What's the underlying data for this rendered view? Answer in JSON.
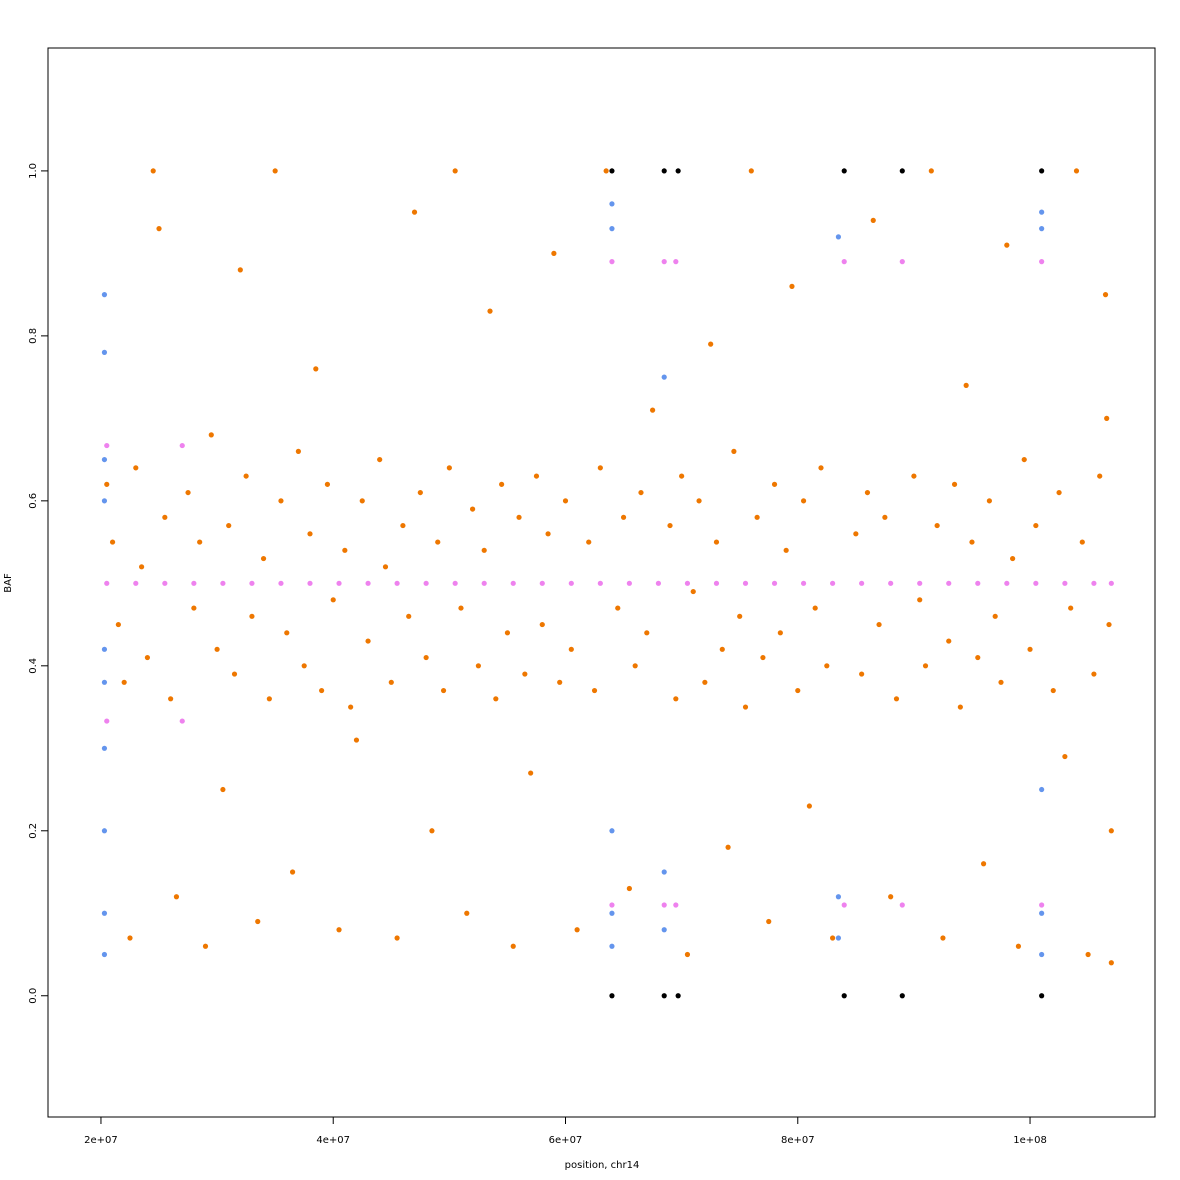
{
  "chart_data": {
    "type": "scatter",
    "x_label": "position, chr14",
    "y_label": "BAF",
    "xlim": [
      15440000,
      110760000
    ],
    "ylim": [
      -0.147,
      1.149
    ],
    "xticks": [
      {
        "value": 20000000,
        "label": "2e+07"
      },
      {
        "value": 40000000,
        "label": "4e+07"
      },
      {
        "value": 60000000,
        "label": "6e+07"
      },
      {
        "value": 80000000,
        "label": "8e+07"
      },
      {
        "value": 100000000,
        "label": "1e+08"
      }
    ],
    "yticks": [
      {
        "value": 0,
        "label": "0.0"
      },
      0.2,
      0.4,
      0.6,
      0.8,
      {
        "value": 1,
        "label": "1.0"
      }
    ],
    "series": [
      {
        "color": "#ee7700",
        "x": [
          20500000.0,
          21000000.0,
          21500000.0,
          22000000.0,
          22500000.0,
          23000000.0,
          23500000.0,
          24000000.0,
          24500000.0,
          25000000.0,
          25500000.0,
          26000000.0,
          26500000.0,
          27500000.0,
          28000000.0,
          28500000.0,
          29000000.0,
          29500000.0,
          30000000.0,
          30500000.0,
          31000000.0,
          31500000.0,
          32000000.0,
          32500000.0,
          33000000.0,
          33500000.0,
          34000000.0,
          34500000.0,
          35000000.0,
          35500000.0,
          36000000.0,
          36500000.0,
          37000000.0,
          37500000.0,
          38000000.0,
          38500000.0,
          39000000.0,
          39500000.0,
          40000000.0,
          40500000.0,
          41000000.0,
          41500000.0,
          42000000.0,
          42500000.0,
          43000000.0,
          44000000.0,
          44500000.0,
          45000000.0,
          45500000.0,
          46000000.0,
          46500000.0,
          47000000.0,
          47500000.0,
          48000000.0,
          48500000.0,
          49000000.0,
          49500000.0,
          50000000.0,
          50500000.0,
          51000000.0,
          51500000.0,
          52000000.0,
          52500000.0,
          53000000.0,
          53500000.0,
          54000000.0,
          54500000.0,
          55000000.0,
          55500000.0,
          56000000.0,
          56500000.0,
          57000000.0,
          57500000.0,
          58000000.0,
          58500000.0,
          59000000.0,
          59500000.0,
          60000000.0,
          60500000.0,
          61000000.0,
          62000000.0,
          62500000.0,
          63000000.0,
          63500000.0,
          64500000.0,
          65000000.0,
          65500000.0,
          66000000.0,
          66500000.0,
          67000000.0,
          67500000.0,
          69000000.0,
          69500000.0,
          70000000.0,
          70500000.0,
          71000000.0,
          71500000.0,
          72000000.0,
          72500000.0,
          73000000.0,
          73500000.0,
          74000000.0,
          74500000.0,
          75000000.0,
          75500000.0,
          76000000.0,
          76500000.0,
          77000000.0,
          77500000.0,
          78000000.0,
          78500000.0,
          79000000.0,
          79500000.0,
          80000000.0,
          80500000.0,
          81000000.0,
          81500000.0,
          82000000.0,
          82500000.0,
          83000000.0,
          85000000.0,
          85500000.0,
          86000000.0,
          86500000.0,
          87000000.0,
          87500000.0,
          88000000.0,
          88500000.0,
          90000000.0,
          90500000.0,
          91000000.0,
          91500000.0,
          92000000.0,
          92500000.0,
          93000000.0,
          93500000.0,
          94000000.0,
          94500000.0,
          95000000.0,
          95500000.0,
          96000000.0,
          96500000.0,
          97000000.0,
          97500000.0,
          98000000.0,
          98500000.0,
          99000000.0,
          99500000.0,
          100000000.0,
          100500000.0,
          102000000.0,
          102500000.0,
          103000000.0,
          103500000.0,
          104000000.0,
          104500000.0,
          105000000.0,
          105500000.0,
          106000000.0,
          106500000.0,
          107000000.0,
          107000000.0,
          106800000.0,
          106600000.0
        ],
        "values": [
          0.62,
          0.55,
          0.45,
          0.38,
          0.07,
          0.64,
          0.52,
          0.41,
          1,
          0.93,
          0.58,
          0.36,
          0.12,
          0.61,
          0.47,
          0.55,
          0.06,
          0.68,
          0.42,
          0.25,
          0.57,
          0.39,
          0.88,
          0.63,
          0.46,
          0.09,
          0.53,
          0.36,
          1,
          0.6,
          0.44,
          0.15,
          0.66,
          0.4,
          0.56,
          0.76,
          0.37,
          0.62,
          0.48,
          0.08,
          0.54,
          0.35,
          0.31,
          0.6,
          0.43,
          0.65,
          0.52,
          0.38,
          0.07,
          0.57,
          0.46,
          0.95,
          0.61,
          0.41,
          0.2,
          0.55,
          0.37,
          0.64,
          1,
          0.47,
          0.1,
          0.59,
          0.4,
          0.54,
          0.83,
          0.36,
          0.62,
          0.44,
          0.06,
          0.58,
          0.39,
          0.27,
          0.63,
          0.45,
          0.56,
          0.9,
          0.38,
          0.6,
          0.42,
          0.08,
          0.55,
          0.37,
          0.64,
          1,
          0.47,
          0.58,
          0.13,
          0.4,
          0.61,
          0.44,
          0.71,
          0.57,
          0.36,
          0.63,
          0.05,
          0.49,
          0.6,
          0.38,
          0.79,
          0.55,
          0.42,
          0.18,
          0.66,
          0.46,
          0.35,
          1,
          0.58,
          0.41,
          0.09,
          0.62,
          0.44,
          0.54,
          0.86,
          0.37,
          0.6,
          0.23,
          0.47,
          0.64,
          0.4,
          0.07,
          0.56,
          0.39,
          0.61,
          0.94,
          0.45,
          0.58,
          0.12,
          0.36,
          0.63,
          0.48,
          0.4,
          1,
          0.57,
          0.07,
          0.43,
          0.62,
          0.35,
          0.74,
          0.55,
          0.41,
          0.16,
          0.6,
          0.46,
          0.38,
          0.91,
          0.53,
          0.06,
          0.65,
          0.42,
          0.57,
          0.37,
          0.61,
          0.29,
          0.47,
          1,
          0.55,
          0.05,
          0.39,
          0.63,
          0.85,
          0.2,
          0.04,
          0.45,
          0.7
        ]
      },
      {
        "color": "#6495ed",
        "x": [
          20300000.0,
          20300000.0,
          20300000.0,
          20300000.0,
          20300000.0,
          20300000.0,
          20300000.0,
          20300000.0,
          20300000.0,
          20300000.0,
          64000000.0,
          64000000.0,
          64000000.0,
          64000000.0,
          64000000.0,
          68500000.0,
          68500000.0,
          68500000.0,
          83500000.0,
          83500000.0,
          83500000.0,
          101000000.0,
          101000000.0,
          101000000.0,
          101000000.0,
          101000000.0
        ],
        "values": [
          0.05,
          0.1,
          0.2,
          0.3,
          0.38,
          0.42,
          0.6,
          0.65,
          0.78,
          0.85,
          0.06,
          0.1,
          0.2,
          0.96,
          0.93,
          0.08,
          0.15,
          0.75,
          0.07,
          0.12,
          0.92,
          0.05,
          0.1,
          0.25,
          0.95,
          0.93
        ]
      },
      {
        "color": "#ee82ee",
        "x": [
          20500000.0,
          23000000.0,
          25500000.0,
          28000000.0,
          30500000.0,
          33000000.0,
          35500000.0,
          38000000.0,
          40500000.0,
          43000000.0,
          45500000.0,
          48000000.0,
          50500000.0,
          53000000.0,
          55500000.0,
          58000000.0,
          60500000.0,
          63000000.0,
          65500000.0,
          68000000.0,
          70500000.0,
          73000000.0,
          75500000.0,
          78000000.0,
          80500000.0,
          83000000.0,
          85500000.0,
          88000000.0,
          90500000.0,
          93000000.0,
          95500000.0,
          98000000.0,
          100500000.0,
          103000000.0,
          105500000.0,
          107000000.0,
          20500000.0,
          20500000.0,
          27000000.0,
          27000000.0,
          64000000.0,
          64000000.0,
          68500000.0,
          68500000.0,
          69500000.0,
          69500000.0,
          84000000.0,
          84000000.0,
          89000000.0,
          89000000.0,
          101000000.0,
          101000000.0
        ],
        "values": [
          0.5,
          0.5,
          0.5,
          0.5,
          0.5,
          0.5,
          0.5,
          0.5,
          0.5,
          0.5,
          0.5,
          0.5,
          0.5,
          0.5,
          0.5,
          0.5,
          0.5,
          0.5,
          0.5,
          0.5,
          0.5,
          0.5,
          0.5,
          0.5,
          0.5,
          0.5,
          0.5,
          0.5,
          0.5,
          0.5,
          0.5,
          0.5,
          0.5,
          0.5,
          0.5,
          0.5,
          0.667,
          0.333,
          0.667,
          0.333,
          0.89,
          0.11,
          0.89,
          0.11,
          0.89,
          0.11,
          0.89,
          0.11,
          0.89,
          0.11,
          0.89,
          0.11
        ]
      },
      {
        "color": "#000000",
        "x": [
          64000000.0,
          64000000.0,
          68500000.0,
          68500000.0,
          69700000.0,
          69700000.0,
          84000000.0,
          84000000.0,
          89000000.0,
          89000000.0,
          101000000.0,
          101000000.0
        ],
        "values": [
          0,
          1,
          0,
          1,
          0,
          1,
          0,
          1,
          0,
          1,
          0,
          1
        ]
      }
    ]
  }
}
